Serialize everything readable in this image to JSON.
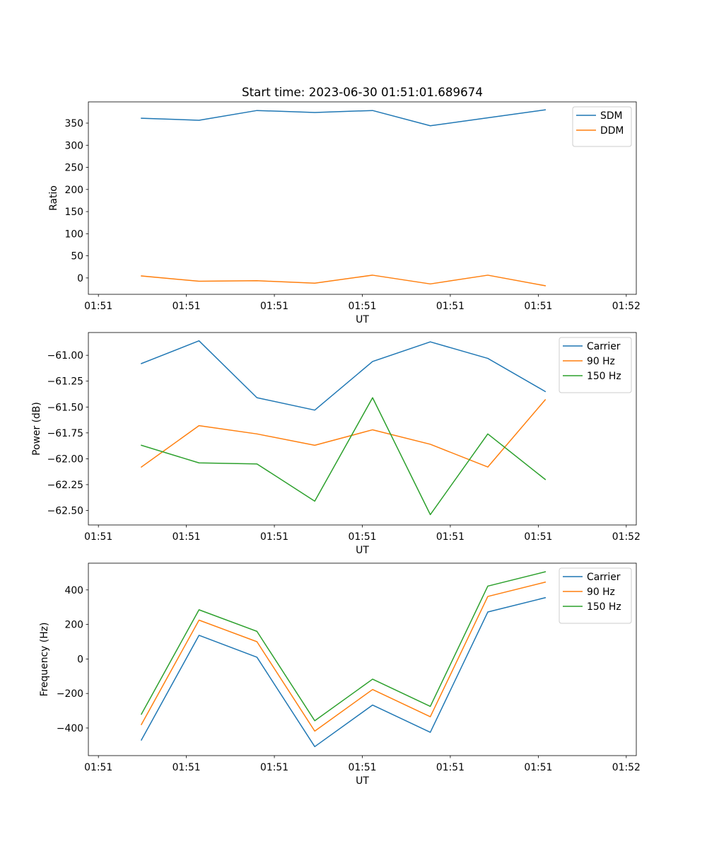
{
  "figure": {
    "title": "Start time: 2023-06-30 01:51:01.689674"
  },
  "chart_data": [
    {
      "type": "line",
      "title": "Start time: 2023-06-30 01:51:01.689674",
      "xlabel": "UT",
      "ylabel": "Ratio",
      "x_tick_labels": [
        "01:51",
        "01:51",
        "01:51",
        "01:51",
        "01:51",
        "01:51",
        "01:52"
      ],
      "x_tick_seconds": [
        1.0,
        1.2,
        1.4,
        1.6,
        1.8,
        2.0,
        2.2
      ],
      "xlim_seconds": [
        0.9772,
        2.2228
      ],
      "ylim": [
        -37,
        398
      ],
      "y_ticks": [
        0,
        50,
        100,
        150,
        200,
        250,
        300,
        350
      ],
      "legend_position": "upper right",
      "grid": false,
      "x_seconds": [
        1.0977,
        1.2287,
        1.3604,
        1.4918,
        1.6233,
        1.7545,
        1.8852,
        2.0158
      ],
      "series": [
        {
          "name": "SDM",
          "color": "#1f77b4",
          "values": [
            361,
            356.5,
            378.5,
            374,
            378.5,
            344,
            362,
            380
          ]
        },
        {
          "name": "DDM",
          "color": "#ff7f0e",
          "values": [
            4.5,
            -7.5,
            -6.3,
            -11.8,
            6.3,
            -13.5,
            6.3,
            -17.6
          ]
        }
      ]
    },
    {
      "type": "line",
      "title": "",
      "xlabel": "UT",
      "ylabel": "Power (dB)",
      "x_tick_labels": [
        "01:51",
        "01:51",
        "01:51",
        "01:51",
        "01:51",
        "01:51",
        "01:52"
      ],
      "x_tick_seconds": [
        1.0,
        1.2,
        1.4,
        1.6,
        1.8,
        2.0,
        2.2
      ],
      "xlim_seconds": [
        0.9772,
        2.2228
      ],
      "ylim": [
        -62.64,
        -60.78
      ],
      "y_ticks": [
        -62.5,
        -62.25,
        -62.0,
        -61.75,
        -61.5,
        -61.25,
        -61.0
      ],
      "y_tick_labels": [
        "−62.50",
        "−62.25",
        "−62.00",
        "−61.75",
        "−61.50",
        "−61.25",
        "−61.00"
      ],
      "legend_position": "upper right",
      "grid": false,
      "x_seconds": [
        1.0977,
        1.2287,
        1.3604,
        1.4918,
        1.6233,
        1.7545,
        1.8852,
        2.0158
      ],
      "series": [
        {
          "name": "Carrier",
          "color": "#1f77b4",
          "values": [
            -61.08,
            -60.86,
            -61.41,
            -61.53,
            -61.06,
            -60.87,
            -61.03,
            -61.35
          ]
        },
        {
          "name": "90 Hz",
          "color": "#ff7f0e",
          "values": [
            -62.08,
            -61.68,
            -61.76,
            -61.87,
            -61.72,
            -61.86,
            -62.08,
            -61.43
          ]
        },
        {
          "name": "150 Hz",
          "color": "#2ca02c",
          "values": [
            -61.87,
            -62.04,
            -62.05,
            -62.41,
            -61.41,
            -62.54,
            -61.76,
            -62.2
          ]
        }
      ]
    },
    {
      "type": "line",
      "title": "",
      "xlabel": "UT",
      "ylabel": "Frequency (Hz)",
      "x_tick_labels": [
        "01:51",
        "01:51",
        "01:51",
        "01:51",
        "01:51",
        "01:51",
        "01:52"
      ],
      "x_tick_seconds": [
        1.0,
        1.2,
        1.4,
        1.6,
        1.8,
        2.0,
        2.2
      ],
      "xlim_seconds": [
        0.9772,
        2.2228
      ],
      "ylim": [
        -560,
        555
      ],
      "y_ticks": [
        -400,
        -200,
        0,
        200,
        400
      ],
      "y_tick_labels": [
        "−400",
        "−200",
        "0",
        "200",
        "400"
      ],
      "legend_position": "upper right",
      "grid": false,
      "x_seconds": [
        1.0977,
        1.2287,
        1.3604,
        1.4918,
        1.6233,
        1.7545,
        1.8852,
        2.0158
      ],
      "series": [
        {
          "name": "Carrier",
          "color": "#1f77b4",
          "values": [
            -470,
            137,
            10,
            -508,
            -267,
            -425,
            272,
            355
          ]
        },
        {
          "name": "90 Hz",
          "color": "#ff7f0e",
          "values": [
            -380,
            225,
            100,
            -418,
            -177,
            -335,
            362,
            445
          ]
        },
        {
          "name": "150 Hz",
          "color": "#2ca02c",
          "values": [
            -320,
            285,
            160,
            -358,
            -117,
            -275,
            422,
            505
          ]
        }
      ]
    }
  ]
}
